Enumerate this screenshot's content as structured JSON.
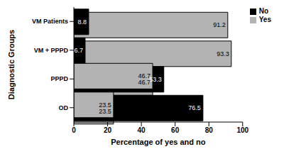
{
  "chart_data": {
    "type": "bar",
    "orientation": "horizontal",
    "stacked": false,
    "categories": [
      "VM Patients",
      "VM + PPPD",
      "PPPD",
      "OD"
    ],
    "series": [
      {
        "name": "Yes",
        "color": "#b3b3b3",
        "values": [
          91.2,
          93.3,
          46.7,
          23.5
        ]
      },
      {
        "name": "No",
        "color": "#000000",
        "values": [
          8.8,
          6.7,
          53.3,
          76.5
        ]
      }
    ],
    "x_label": "Percentage of yes and no",
    "y_label": "Diagnostic Groups",
    "xlim": [
      0,
      100
    ],
    "xticks": [
      0,
      20,
      40,
      60,
      80,
      100
    ],
    "data_labels": true,
    "legend": "upper right",
    "grid": false
  }
}
